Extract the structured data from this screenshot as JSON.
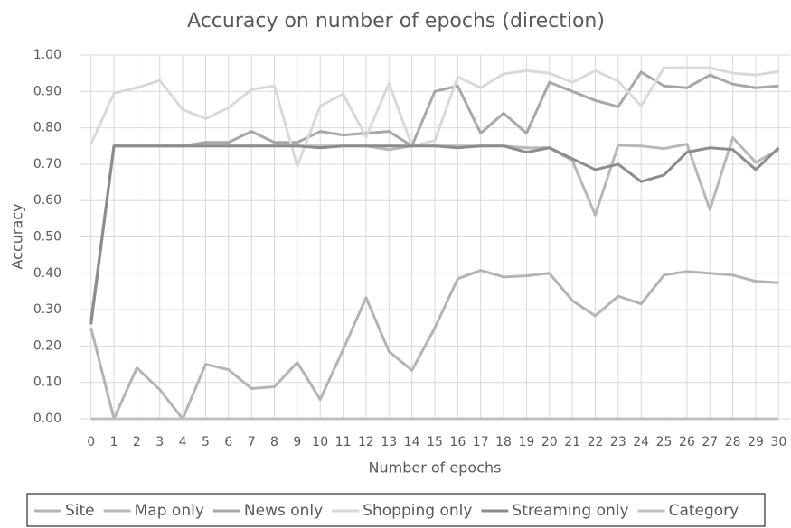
{
  "chart_data": {
    "type": "line",
    "title": "Accuracy on number of epochs (direction)",
    "x_label": "Number of epochs",
    "y_label": "Accuracy",
    "categories": [
      "0",
      "1",
      "2",
      "3",
      "4",
      "5",
      "6",
      "7",
      "8",
      "9",
      "10",
      "11",
      "12",
      "13",
      "14",
      "15",
      "16",
      "17",
      "18",
      "19",
      "20",
      "21",
      "22",
      "23",
      "24",
      "25",
      "26",
      "27",
      "28",
      "29",
      "30"
    ],
    "series": [
      {
        "name": "Site",
        "color": "#b4b4b4",
        "values": [
          0.25,
          0,
          0.14,
          0.08,
          0,
          0.15,
          0.135,
          0.083,
          0.088,
          0.155,
          0.053,
          0.19,
          0.333,
          0.185,
          0.133,
          0.25,
          0.385,
          0.408,
          0.39,
          0.393,
          0.4,
          0.325,
          0.283,
          0.337,
          0.316,
          0.395,
          0.405,
          0.4,
          0.395,
          0.378,
          0.374
        ]
      },
      {
        "name": "Map only",
        "color": "#b8b8b8",
        "values": [
          0.26,
          0.75,
          0.75,
          0.75,
          0.75,
          0.75,
          0.75,
          0.75,
          0.75,
          0.75,
          0.75,
          0.75,
          0.75,
          0.74,
          0.75,
          0.75,
          0.75,
          0.75,
          0.75,
          0.745,
          0.745,
          0.71,
          0.56,
          0.752,
          0.75,
          0.743,
          0.755,
          0.575,
          0.773,
          0.705,
          0.74
        ]
      },
      {
        "name": "News only",
        "color": "#a8a8a8",
        "values": [
          0.27,
          0.75,
          0.75,
          0.75,
          0.75,
          0.76,
          0.76,
          0.79,
          0.76,
          0.76,
          0.79,
          0.78,
          0.785,
          0.79,
          0.75,
          0.9,
          0.915,
          0.785,
          0.84,
          0.785,
          0.925,
          0.9,
          0.875,
          0.858,
          0.953,
          0.915,
          0.91,
          0.945,
          0.92,
          0.91,
          0.915
        ]
      },
      {
        "name": "Shopping only",
        "color": "#d9d9d9",
        "values": [
          0.755,
          0.895,
          0.91,
          0.93,
          0.85,
          0.825,
          0.855,
          0.905,
          0.915,
          0.695,
          0.86,
          0.893,
          0.775,
          0.922,
          0.75,
          0.765,
          0.94,
          0.91,
          0.948,
          0.957,
          0.95,
          0.925,
          0.957,
          0.928,
          0.86,
          0.965,
          0.965,
          0.965,
          0.95,
          0.945,
          0.955
        ]
      },
      {
        "name": "Streaming only",
        "color": "#8c8c8c",
        "values": [
          0.26,
          0.75,
          0.75,
          0.75,
          0.75,
          0.75,
          0.75,
          0.75,
          0.75,
          0.75,
          0.745,
          0.75,
          0.75,
          0.75,
          0.75,
          0.75,
          0.745,
          0.75,
          0.75,
          0.733,
          0.745,
          0.715,
          0.685,
          0.7,
          0.652,
          0.67,
          0.733,
          0.745,
          0.74,
          0.685,
          0.745
        ]
      },
      {
        "name": "Category",
        "color": "#c0c0c0",
        "values": [
          0,
          0,
          0,
          0,
          0,
          0,
          0,
          0,
          0,
          0,
          0,
          0,
          0,
          0,
          0,
          0,
          0,
          0,
          0,
          0,
          0,
          0,
          0,
          0,
          0,
          0,
          0,
          0,
          0,
          0,
          0
        ]
      }
    ],
    "ylim": [
      0,
      1
    ],
    "yticks": [
      {
        "value": 0,
        "label": "0.00"
      },
      {
        "value": 0.1,
        "label": "0.10"
      },
      {
        "value": 0.2,
        "label": "0.20"
      },
      {
        "value": 0.3,
        "label": "0.30"
      },
      {
        "value": 0.4,
        "label": "0.40"
      },
      {
        "value": 0.5,
        "label": "0.50"
      },
      {
        "value": 0.6,
        "label": "0.60"
      },
      {
        "value": 0.7,
        "label": "0.70"
      },
      {
        "value": 0.8,
        "label": "0.80"
      },
      {
        "value": 0.9,
        "label": "0.90"
      },
      {
        "value": 1,
        "label": "1.00"
      }
    ],
    "grid": true,
    "legend": "bottom"
  }
}
